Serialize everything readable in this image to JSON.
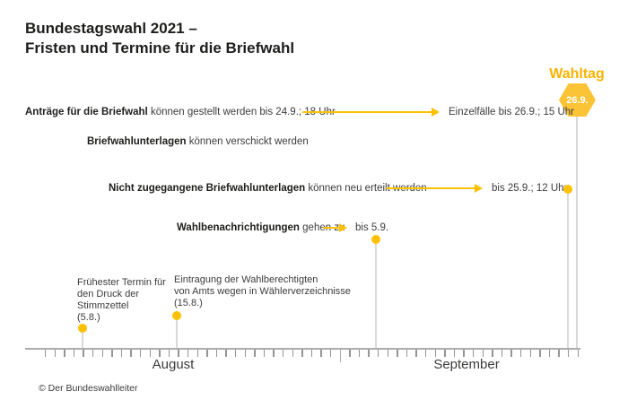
{
  "title": {
    "line1": "Bundestagswahl 2021 –",
    "line2": "Fristen und Termine für die Briefwahl"
  },
  "wahltag": {
    "label": "Wahltag",
    "date": "26.9."
  },
  "events": [
    {
      "bold": "Anträge für die Briefwahl",
      "rest": " können gestellt werden bis 24.9.; 18 Uhr",
      "right": "Einzelfälle bis 26.9.; 15 Uhr"
    },
    {
      "bold": "Briefwahlunterlagen",
      "rest": " können verschickt werden"
    },
    {
      "bold": "Nicht zugegangene Briefwahlunterlagen",
      "rest": " können neu erteilt werden",
      "right": "bis 25.9.; 12 Uhr"
    },
    {
      "bold": "Wahlbenachrichtigungen",
      "rest": " gehen zu",
      "right": "bis 5.9."
    }
  ],
  "milestones": [
    {
      "text": "Frühester Termin für\nden Druck der\nStimmzettel\n(5.8.)",
      "date": "5.8."
    },
    {
      "text": "Eintragung der Wahlberechtigten\nvon Amts wegen in Wählerverzeichnisse\n(15.8.)",
      "date": "15.8."
    }
  ],
  "axis": {
    "months": [
      "August",
      "September"
    ],
    "day_tick_count": 57,
    "month_divider_index": 31
  },
  "footer": "© Der Bundeswahlleiter",
  "colors": {
    "accent_yellow": "#FCC104",
    "wahltag_text": "#F9B200",
    "hexagon_fill": "#FBC437",
    "hexagon_text": "#FFFFFF",
    "drop_line_gray": "#D9D9D9",
    "axis_gray": "#ADADAD",
    "text_dark": "#1D1D1B"
  },
  "chart_data": {
    "type": "timeline",
    "title": "Bundestagswahl 2021 – Fristen und Termine für die Briefwahl",
    "x_axis": {
      "unit": "days",
      "start": "1.8.2021",
      "end": "26.9.2021",
      "month_labels": [
        "August",
        "September"
      ],
      "grid": "daily ticks"
    },
    "events": [
      {
        "label": "Anträge für die Briefwahl können gestellt werden",
        "deadline": "24.9.; 18 Uhr",
        "exception": "Einzelfälle bis 26.9.; 15 Uhr"
      },
      {
        "label": "Briefwahlunterlagen können verschickt werden"
      },
      {
        "label": "Nicht zugegangene Briefwahlunterlagen können neu erteilt werden",
        "deadline": "25.9.; 12 Uhr"
      },
      {
        "label": "Wahlbenachrichtigungen gehen zu",
        "deadline": "5.9."
      },
      {
        "label": "Frühester Termin für den Druck der Stimmzettel",
        "date": "5.8."
      },
      {
        "label": "Eintragung der Wahlberechtigten von Amts wegen in Wählerverzeichnisse",
        "date": "15.8."
      },
      {
        "label": "Wahltag",
        "date": "26.9."
      }
    ],
    "source": "© Der Bundeswahlleiter"
  }
}
